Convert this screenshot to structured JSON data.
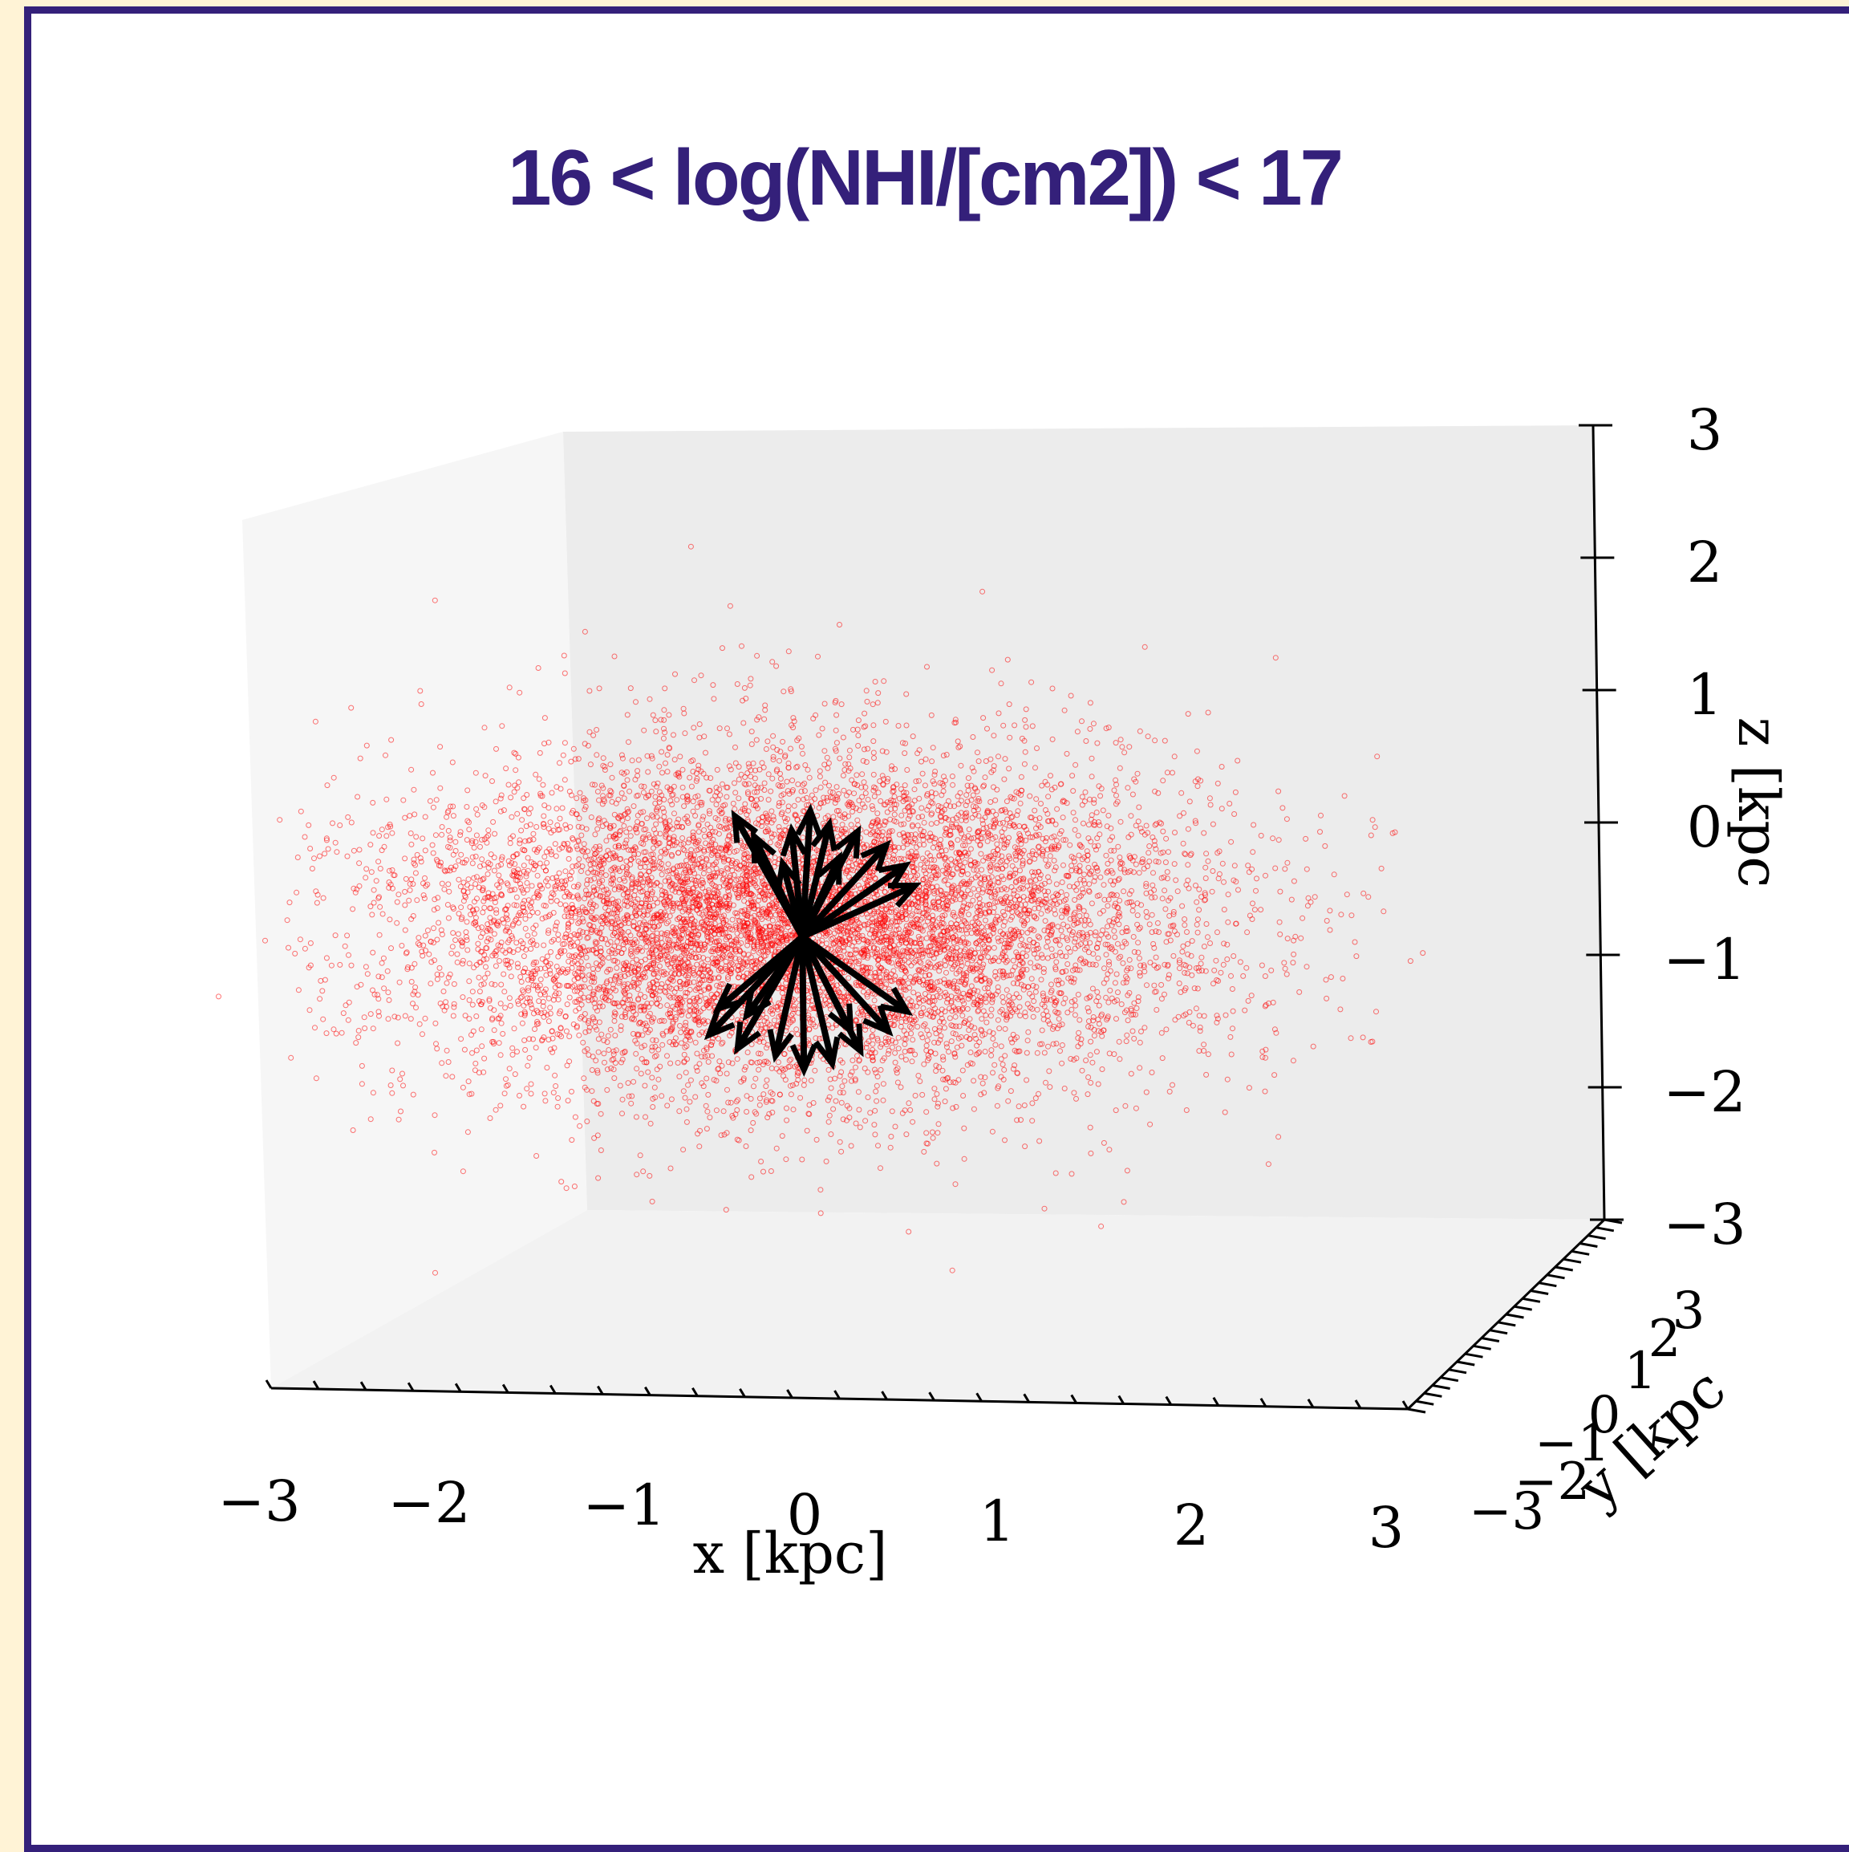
{
  "chart_data": {
    "type": "scatter",
    "projection": "3d",
    "title": "16 < log(NHI/[cm2]) < 17",
    "xlabel": "x [kpc]",
    "ylabel": "y [kpc",
    "zlabel": "z [kpc",
    "xlim": [
      -3,
      3
    ],
    "ylim": [
      -3,
      3
    ],
    "zlim": [
      -3,
      3
    ],
    "x_ticks": [
      "−3",
      "−2",
      "−1",
      "0",
      "1",
      "2",
      "3"
    ],
    "y_ticks": [
      "−3",
      "−2",
      "−1",
      "0",
      "1",
      "2",
      "3"
    ],
    "z_ticks": [
      "3",
      "2",
      "1",
      "0",
      "−1",
      "−2",
      "−3"
    ],
    "series": [
      {
        "kind": "points",
        "marker": "open circle",
        "color": "#ff0000",
        "distribution": {
          "center": [
            -0.2,
            0,
            -0.1
          ],
          "spread_kpc": [
            1.05,
            1.0,
            0.45
          ],
          "approx_count": 9000
        }
      },
      {
        "kind": "vectors",
        "color": "#000000",
        "origin": [
          -0.2,
          0,
          -0.2
        ],
        "vectors": [
          [
            -0.35,
            0,
            0.9
          ],
          [
            -0.25,
            0,
            0.75
          ],
          [
            -0.05,
            0,
            0.8
          ],
          [
            0.05,
            0,
            0.95
          ],
          [
            0.15,
            0,
            0.85
          ],
          [
            0.3,
            0,
            0.8
          ],
          [
            0.45,
            0,
            0.7
          ],
          [
            0.55,
            0,
            0.55
          ],
          [
            0.6,
            0,
            0.4
          ],
          [
            0.2,
            0,
            0.6
          ],
          [
            -0.1,
            0,
            0.55
          ],
          [
            -0.45,
            0,
            -0.55
          ],
          [
            -0.5,
            0,
            -0.75
          ],
          [
            -0.35,
            0,
            -0.85
          ],
          [
            -0.15,
            0,
            -0.9
          ],
          [
            0.0,
            0,
            -1.0
          ],
          [
            0.15,
            0,
            -0.95
          ],
          [
            0.3,
            0,
            -0.85
          ],
          [
            0.45,
            0,
            -0.7
          ],
          [
            0.55,
            0,
            -0.55
          ],
          [
            0.25,
            0,
            -0.7
          ],
          [
            -0.3,
            0,
            -0.6
          ]
        ]
      }
    ],
    "grid": false,
    "legend": "none"
  },
  "colors": {
    "frame": "#34207a",
    "page_background": "#fff3d6",
    "points": "#ff0000",
    "vectors": "#000000"
  }
}
